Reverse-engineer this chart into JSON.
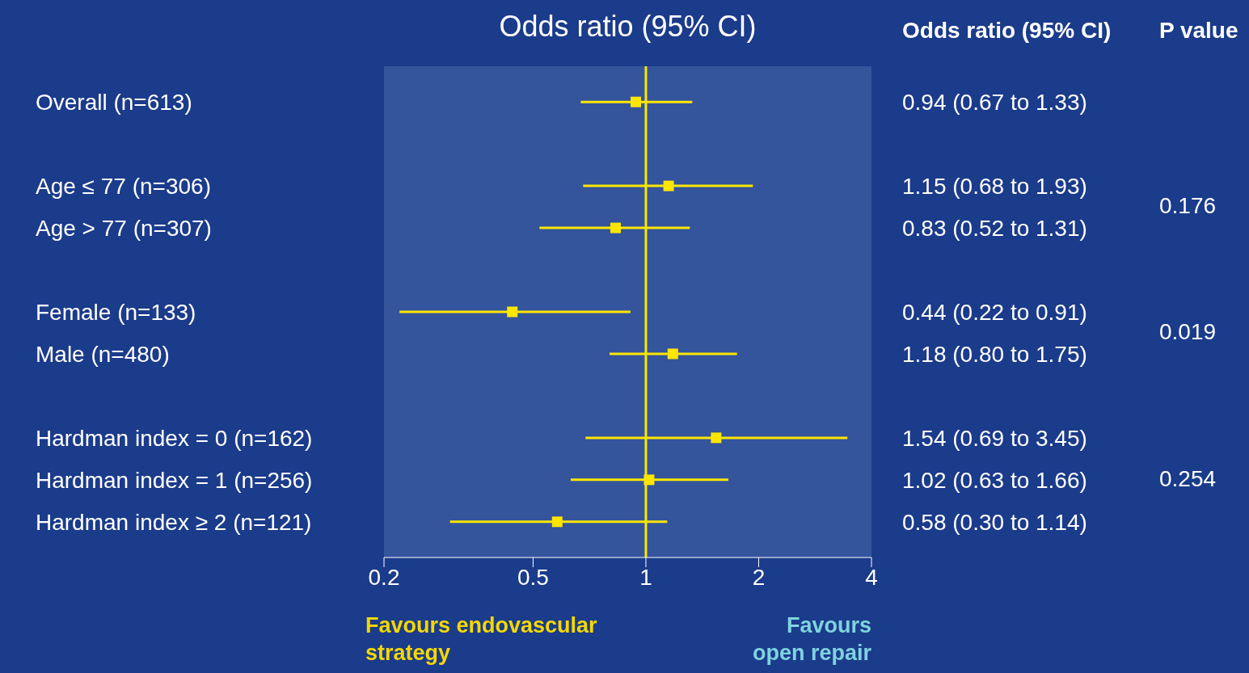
{
  "chart_data": {
    "type": "scatter",
    "orientation": "horizontal",
    "title": "Odds ratio (95% CI)",
    "categories": [
      "Overall (n=613)",
      null,
      "Age ≤ 77 (n=306)",
      "Age > 77 (n=307)",
      null,
      "Female (n=133)",
      "Male (n=480)",
      null,
      "Hardman index = 0 (n=162)",
      "Hardman index = 1 (n=256)",
      "Hardman index ≥ 2 (n=121)"
    ],
    "values": [
      0.94,
      null,
      1.15,
      0.83,
      null,
      0.44,
      1.18,
      null,
      1.54,
      1.02,
      0.58
    ],
    "errors": [
      [
        0.67,
        1.33
      ],
      null,
      [
        0.68,
        1.93
      ],
      [
        0.52,
        1.31
      ],
      null,
      [
        0.22,
        0.91
      ],
      [
        0.8,
        1.75
      ],
      null,
      [
        0.69,
        3.45
      ],
      [
        0.63,
        1.66
      ],
      [
        0.3,
        1.14
      ]
    ],
    "value_labels": [
      "0.94 (0.67 to 1.33)",
      null,
      "1.15 (0.68 to 1.93)",
      "0.83 (0.52 to 1.31)",
      null,
      "0.44 (0.22 to 0.91)",
      "1.18 (0.80 to 1.75)",
      null,
      "1.54 (0.69 to 3.45)",
      "1.02 (0.63 to 1.66)",
      "0.58 (0.30 to 1.14)"
    ],
    "color": "#ffe600",
    "marker": "square",
    "xlim": [
      0.2,
      4
    ],
    "xticks": [
      0.2,
      0.5,
      1,
      2,
      4
    ],
    "log": "x",
    "ref_lines": [
      {
        "axis": "x",
        "value": 1,
        "color": "#ffe600"
      }
    ],
    "annotations": [
      "Odds ratio (95% CI)",
      "P value",
      "0.176",
      "0.019",
      "0.254",
      "Favours endovascular strategy",
      "Favours open repair"
    ]
  }
}
